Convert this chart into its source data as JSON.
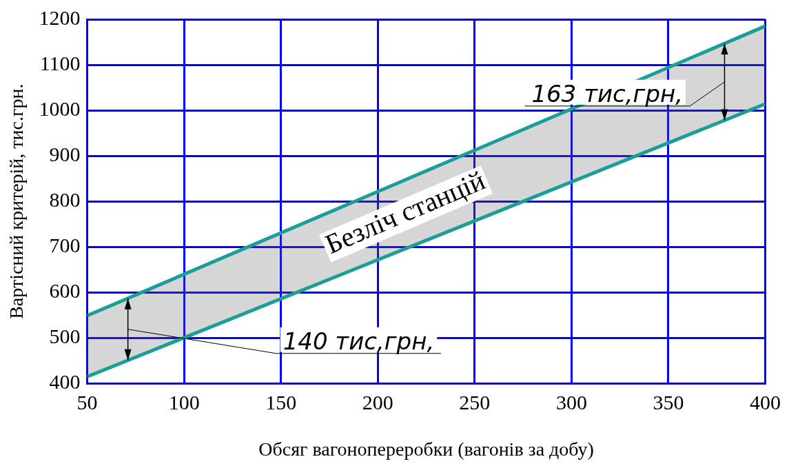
{
  "chart_data": {
    "type": "line",
    "xlabel": "Обсяг вагонопереробки (вагонів за добу)",
    "ylabel": "Вартісний критерій, тис.грн.",
    "x": [
      50,
      400
    ],
    "xlim": [
      50,
      400
    ],
    "xticks": [
      50,
      100,
      150,
      200,
      250,
      300,
      350,
      400
    ],
    "ylim": [
      400,
      1200
    ],
    "yticks": [
      400,
      500,
      600,
      700,
      800,
      900,
      1000,
      1100,
      1200
    ],
    "grid": true,
    "legend": false,
    "marker": "none",
    "line_style": "solid",
    "series": [
      {
        "color": "#1a9e96",
        "values": [
          415,
          1014
        ]
      },
      {
        "type": "area",
        "color": "#1a9e96",
        "values": [
          549,
          1185
        ]
      }
    ],
    "annotations": [
      "Безліч станцій",
      "140 тис,грн,",
      "163 тис,грн,"
    ]
  }
}
